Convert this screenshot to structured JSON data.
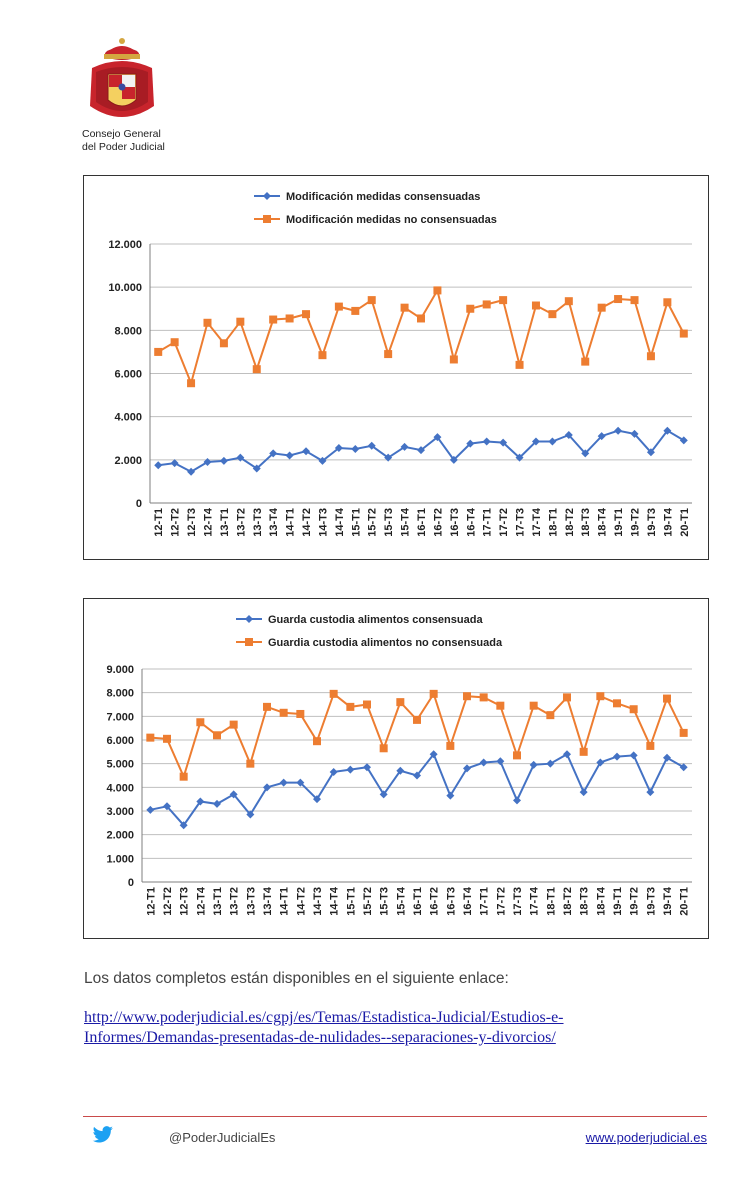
{
  "header": {
    "org_line1": "Consejo General",
    "org_line2": "del Poder Judicial"
  },
  "chart_data": [
    {
      "type": "line",
      "categories": [
        "12-T1",
        "12-T2",
        "12-T3",
        "12-T4",
        "13-T1",
        "13-T2",
        "13-T3",
        "13-T4",
        "14-T1",
        "14-T2",
        "14-T3",
        "14-T4",
        "15-T1",
        "15-T2",
        "15-T3",
        "15-T4",
        "16-T1",
        "16-T2",
        "16-T3",
        "16-T4",
        "17-T1",
        "17-T2",
        "17-T3",
        "17-T4",
        "18-T1",
        "18-T2",
        "18-T3",
        "18-T4",
        "19-T1",
        "19-T2",
        "19-T3",
        "19-T4",
        "20-T1"
      ],
      "series": [
        {
          "name": "Modificación medidas consensuadas",
          "color": "#4472c4",
          "marker": "diamond",
          "values": [
            1750,
            1850,
            1450,
            1900,
            1950,
            2100,
            1600,
            2300,
            2200,
            2400,
            1950,
            2550,
            2500,
            2650,
            2100,
            2600,
            2450,
            3050,
            2000,
            2750,
            2850,
            2800,
            2100,
            2850,
            2850,
            3150,
            2300,
            3100,
            3350,
            3200,
            2350,
            3350,
            2900
          ]
        },
        {
          "name": "Modificación medidas no consensuadas",
          "color": "#ed7d31",
          "marker": "square",
          "values": [
            7000,
            7450,
            5550,
            8350,
            7400,
            8400,
            6200,
            8500,
            8550,
            8750,
            6850,
            9100,
            8900,
            9400,
            6900,
            9050,
            8550,
            9850,
            6650,
            9000,
            9200,
            9400,
            6400,
            9150,
            8750,
            9350,
            6550,
            9050,
            9450,
            9400,
            6800,
            9300,
            7850
          ]
        }
      ],
      "ylim": [
        0,
        12000
      ],
      "yticks": [
        "0",
        "2.000",
        "4.000",
        "6.000",
        "8.000",
        "10.000",
        "12.000"
      ],
      "grid": true,
      "legend": "top"
    },
    {
      "type": "line",
      "categories": [
        "12-T1",
        "12-T2",
        "12-T3",
        "12-T4",
        "13-T1",
        "13-T2",
        "13-T3",
        "13-T4",
        "14-T1",
        "14-T2",
        "14-T3",
        "14-T4",
        "15-T1",
        "15-T2",
        "15-T3",
        "15-T4",
        "16-T1",
        "16-T2",
        "16-T3",
        "16-T4",
        "17-T1",
        "17-T2",
        "17-T3",
        "17-T4",
        "18-T1",
        "18-T2",
        "18-T3",
        "18-T4",
        "19-T1",
        "19-T2",
        "19-T3",
        "19-T4",
        "20-T1"
      ],
      "series": [
        {
          "name": "Guarda custodia alimentos consensuada",
          "color": "#4472c4",
          "marker": "diamond",
          "values": [
            3050,
            3200,
            2400,
            3400,
            3300,
            3700,
            2850,
            4000,
            4200,
            4200,
            3500,
            4650,
            4750,
            4850,
            3700,
            4700,
            4500,
            5400,
            3650,
            4800,
            5050,
            5100,
            3450,
            4950,
            5000,
            5400,
            3800,
            5050,
            5300,
            5350,
            3800,
            5250,
            4850
          ]
        },
        {
          "name": "Guardia custodia alimentos no consensuada",
          "color": "#ed7d31",
          "marker": "square",
          "values": [
            6100,
            6050,
            4450,
            6750,
            6200,
            6650,
            5000,
            7400,
            7150,
            7100,
            5950,
            7950,
            7400,
            7500,
            5650,
            7600,
            6850,
            7950,
            5750,
            7850,
            7800,
            7450,
            5350,
            7450,
            7050,
            7800,
            5500,
            7850,
            7550,
            7300,
            5750,
            7750,
            6300
          ]
        }
      ],
      "ylim": [
        0,
        9000
      ],
      "yticks": [
        "0",
        "1.000",
        "2.000",
        "3.000",
        "4.000",
        "5.000",
        "6.000",
        "7.000",
        "8.000",
        "9.000"
      ],
      "grid": true,
      "legend": "top"
    }
  ],
  "body": {
    "intro": "Los datos completos están disponibles en el siguiente enlace:",
    "link": "http://www.poderjudicial.es/cgpj/es/Temas/Estadistica-Judicial/Estudios-e-Informes/Demandas-presentadas-de-nulidades--separaciones-y-divorcios/"
  },
  "footer": {
    "handle": "@PoderJudicialEs",
    "website": "www.poderjudicial.es",
    "line_color": "#c94a4a"
  }
}
